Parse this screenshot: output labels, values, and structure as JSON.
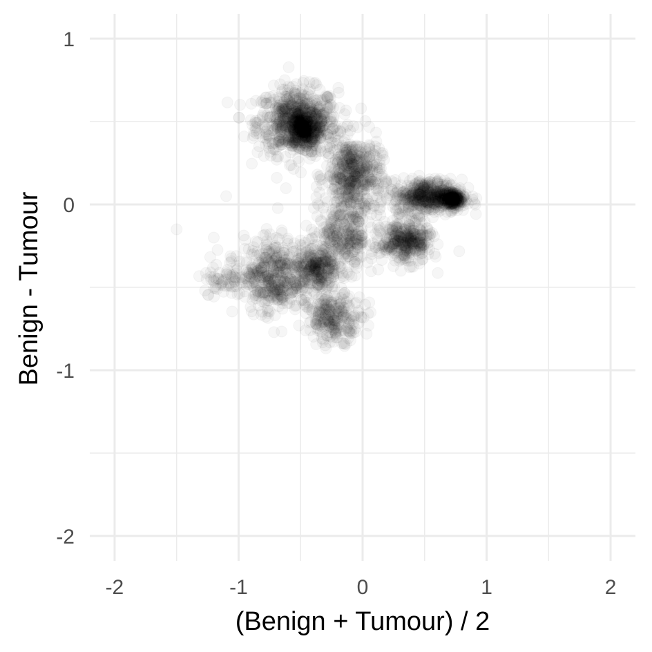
{
  "chart_data": {
    "type": "scatter",
    "title": "",
    "xlabel": "(Benign + Tumour) / 2",
    "ylabel": "Benign - Tumour",
    "xlim": [
      -2.2,
      2.2
    ],
    "ylim": [
      -2.15,
      1.15
    ],
    "x_ticks": [
      -2,
      -1,
      0,
      1,
      2
    ],
    "x_tick_labels": [
      "-2",
      "-1",
      "0",
      "1",
      "2"
    ],
    "y_ticks": [
      -2,
      -1,
      0,
      1
    ],
    "y_tick_labels": [
      "-2",
      "-1",
      "0",
      "1"
    ],
    "grid": true,
    "legend": "none",
    "point_color": "#000000",
    "point_alpha": 0.035,
    "clusters": [
      {
        "x": [
          -0.85,
          -0.2
        ],
        "y": [
          0.3,
          0.7
        ],
        "n": 700
      },
      {
        "x": [
          -0.6,
          -0.35
        ],
        "y": [
          0.35,
          0.55
        ],
        "n": 300
      },
      {
        "x": [
          -0.3,
          0.15
        ],
        "y": [
          -0.05,
          0.4
        ],
        "n": 500
      },
      {
        "x": [
          0.25,
          0.8
        ],
        "y": [
          -0.05,
          0.15
        ],
        "n": 500
      },
      {
        "x": [
          0.65,
          0.8
        ],
        "y": [
          -0.02,
          0.08
        ],
        "n": 200
      },
      {
        "x": [
          -0.95,
          -0.5
        ],
        "y": [
          -0.65,
          -0.2
        ],
        "n": 400
      },
      {
        "x": [
          -0.55,
          -0.2
        ],
        "y": [
          -0.55,
          -0.25
        ],
        "n": 300
      },
      {
        "x": [
          -0.4,
          0.1
        ],
        "y": [
          -0.4,
          0.0
        ],
        "n": 300
      },
      {
        "x": [
          0.15,
          0.55
        ],
        "y": [
          -0.35,
          -0.1
        ],
        "n": 350
      },
      {
        "x": [
          -0.45,
          0.0
        ],
        "y": [
          -0.82,
          -0.55
        ],
        "n": 250
      },
      {
        "x": [
          -1.3,
          -0.85
        ],
        "y": [
          -0.58,
          -0.3
        ],
        "n": 80
      }
    ],
    "outliers": [
      {
        "x": -1.5,
        "y": -0.15
      },
      {
        "x": -1.1,
        "y": 0.05
      },
      {
        "x": -1.2,
        "y": -0.2
      },
      {
        "x": -0.3,
        "y": -0.85
      }
    ]
  }
}
